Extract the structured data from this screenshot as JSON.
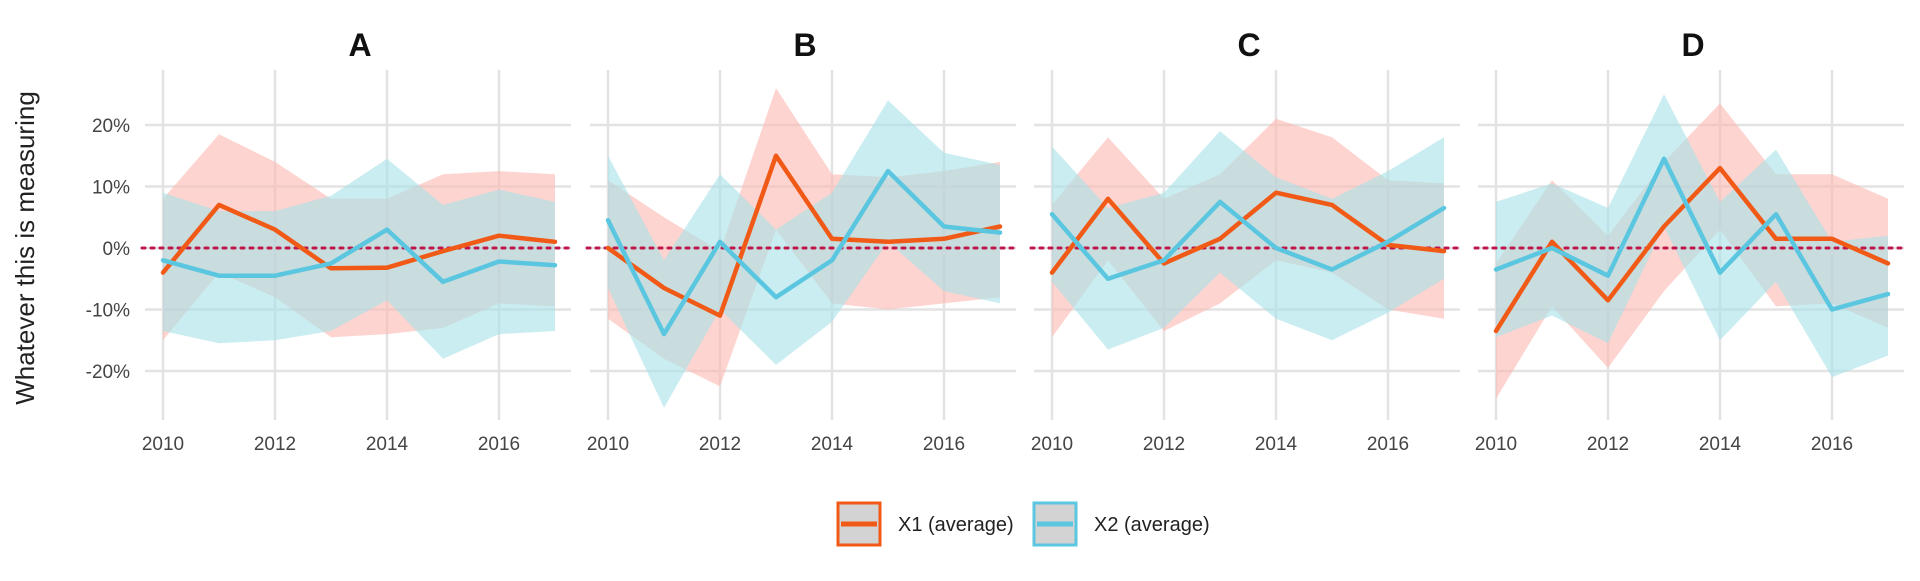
{
  "chart_data": {
    "type": "line",
    "ylabel": "Whatever this is measuring",
    "xlabel": "",
    "x": [
      2010,
      2011,
      2012,
      2013,
      2014,
      2015,
      2016,
      2017
    ],
    "x_ticks": [
      "2010",
      "2012",
      "2014",
      "2016"
    ],
    "y_ticks": [
      "20%",
      "10%",
      "0%",
      "-10%",
      "-20%"
    ],
    "y_tick_values": [
      20,
      10,
      0,
      -10,
      -20
    ],
    "ylim": [
      -28,
      28
    ],
    "xlim": [
      2009.75,
      2017.2
    ],
    "reference_line": 0,
    "grid": true,
    "legend_placement": "bottom",
    "colors": {
      "x1_line": "#f05a16",
      "x1_band": "#fbb7b0",
      "x2_line": "#5bc6e0",
      "x2_band": "#a6e1e8",
      "reference": "#c0174a",
      "grid": "#e3e3e3"
    },
    "legend": [
      {
        "label": "X1 (average)"
      },
      {
        "label": "X2 (average)"
      }
    ],
    "panels": [
      {
        "title": "A",
        "series": [
          {
            "name": "X1 (average)",
            "values": [
              -4,
              7,
              3,
              -3.3,
              -3.2,
              -0.5,
              2,
              1
            ],
            "lower": [
              -15,
              -4,
              -8,
              -14.5,
              -14,
              -13,
              -9,
              -9.5
            ],
            "upper": [
              8,
              18.5,
              14,
              8,
              8,
              12,
              12.5,
              12
            ]
          },
          {
            "name": "X2 (average)",
            "values": [
              -2,
              -4.5,
              -4.5,
              -2.5,
              3,
              -5.5,
              -2.2,
              -2.8
            ],
            "lower": [
              -13.5,
              -15.5,
              -15,
              -13.5,
              -8.5,
              -18,
              -14,
              -13.5
            ],
            "upper": [
              9,
              6,
              6,
              8.5,
              14.5,
              7,
              9.5,
              7.5
            ]
          }
        ]
      },
      {
        "title": "B",
        "series": [
          {
            "name": "X1 (average)",
            "values": [
              0,
              -6.5,
              -11,
              15,
              1.5,
              1,
              1.5,
              3.5
            ],
            "lower": [
              -11.5,
              -18,
              -22.5,
              3,
              -9,
              -10,
              -9,
              -8
            ],
            "upper": [
              11,
              5,
              -0.5,
              26,
              12,
              11.5,
              12.5,
              14
            ]
          },
          {
            "name": "X2 (average)",
            "values": [
              4.5,
              -14,
              1,
              -8,
              -2,
              12.5,
              3.5,
              2.5
            ],
            "lower": [
              -6.5,
              -26,
              -10,
              -19,
              -12,
              1,
              -7,
              -9
            ],
            "upper": [
              15,
              -2,
              12,
              3,
              9,
              24,
              15.5,
              13.5
            ]
          }
        ]
      },
      {
        "title": "C",
        "series": [
          {
            "name": "X1 (average)",
            "values": [
              -4,
              8,
              -2.5,
              1.5,
              9,
              7,
              0.5,
              -0.5
            ],
            "lower": [
              -14.5,
              -2,
              -13.5,
              -9,
              -2,
              -4,
              -10,
              -11.5
            ],
            "upper": [
              7,
              18,
              8,
              12,
              21,
              18,
              11,
              10.5
            ]
          },
          {
            "name": "X2 (average)",
            "values": [
              5.5,
              -5,
              -2,
              7.5,
              0,
              -3.5,
              1,
              6.5
            ],
            "lower": [
              -5.5,
              -16.5,
              -13,
              -4,
              -11.5,
              -15,
              -10.5,
              -5
            ],
            "upper": [
              16.5,
              6.5,
              9,
              19,
              11.5,
              8,
              12.5,
              18
            ]
          }
        ]
      },
      {
        "title": "D",
        "series": [
          {
            "name": "X1 (average)",
            "values": [
              -13.5,
              1,
              -8.5,
              3.5,
              13,
              1.5,
              1.5,
              -2.5
            ],
            "lower": [
              -24.5,
              -9.5,
              -19.5,
              -7,
              3,
              -9.5,
              -9,
              -13
            ],
            "upper": [
              -2.5,
              11,
              2,
              14,
              23.5,
              12,
              12,
              8
            ]
          },
          {
            "name": "X2 (average)",
            "values": [
              -3.5,
              0,
              -4.5,
              14.5,
              -4,
              5.5,
              -10,
              -7.5
            ],
            "lower": [
              -14.5,
              -11,
              -15.5,
              3.5,
              -15,
              -5.5,
              -21,
              -17.5
            ],
            "upper": [
              7.5,
              10.5,
              6.5,
              25,
              7.5,
              16,
              1,
              2
            ]
          }
        ]
      }
    ]
  }
}
